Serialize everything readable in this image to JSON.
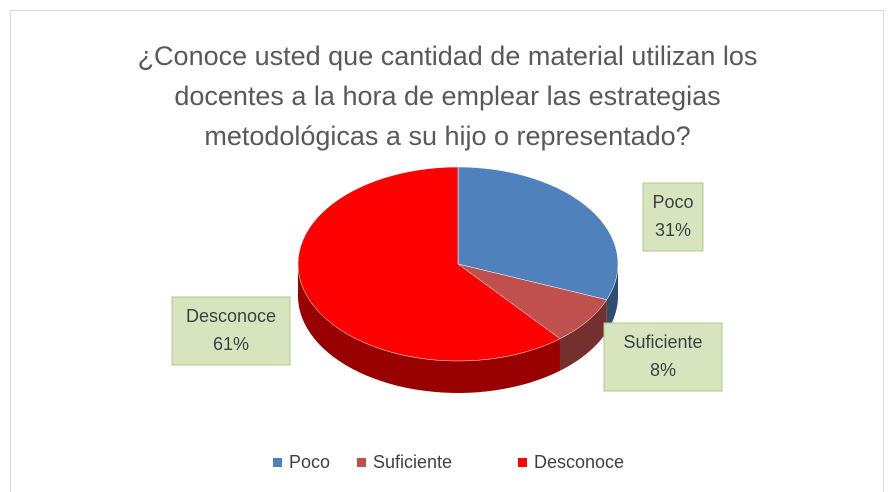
{
  "chart_data": {
    "type": "pie",
    "title": "¿Conoce usted que cantidad de material utilizan los docentes a la hora de emplear las estrategias metodológicas a su hijo o representado?",
    "categories": [
      "Poco",
      "Suficiente",
      "Desconoce"
    ],
    "values": [
      31,
      8,
      61
    ],
    "value_labels": [
      "31%",
      "8%",
      "61%"
    ],
    "colors": [
      "#4f81bd",
      "#c0504d",
      "#ff0000"
    ],
    "legend": "bottom"
  }
}
